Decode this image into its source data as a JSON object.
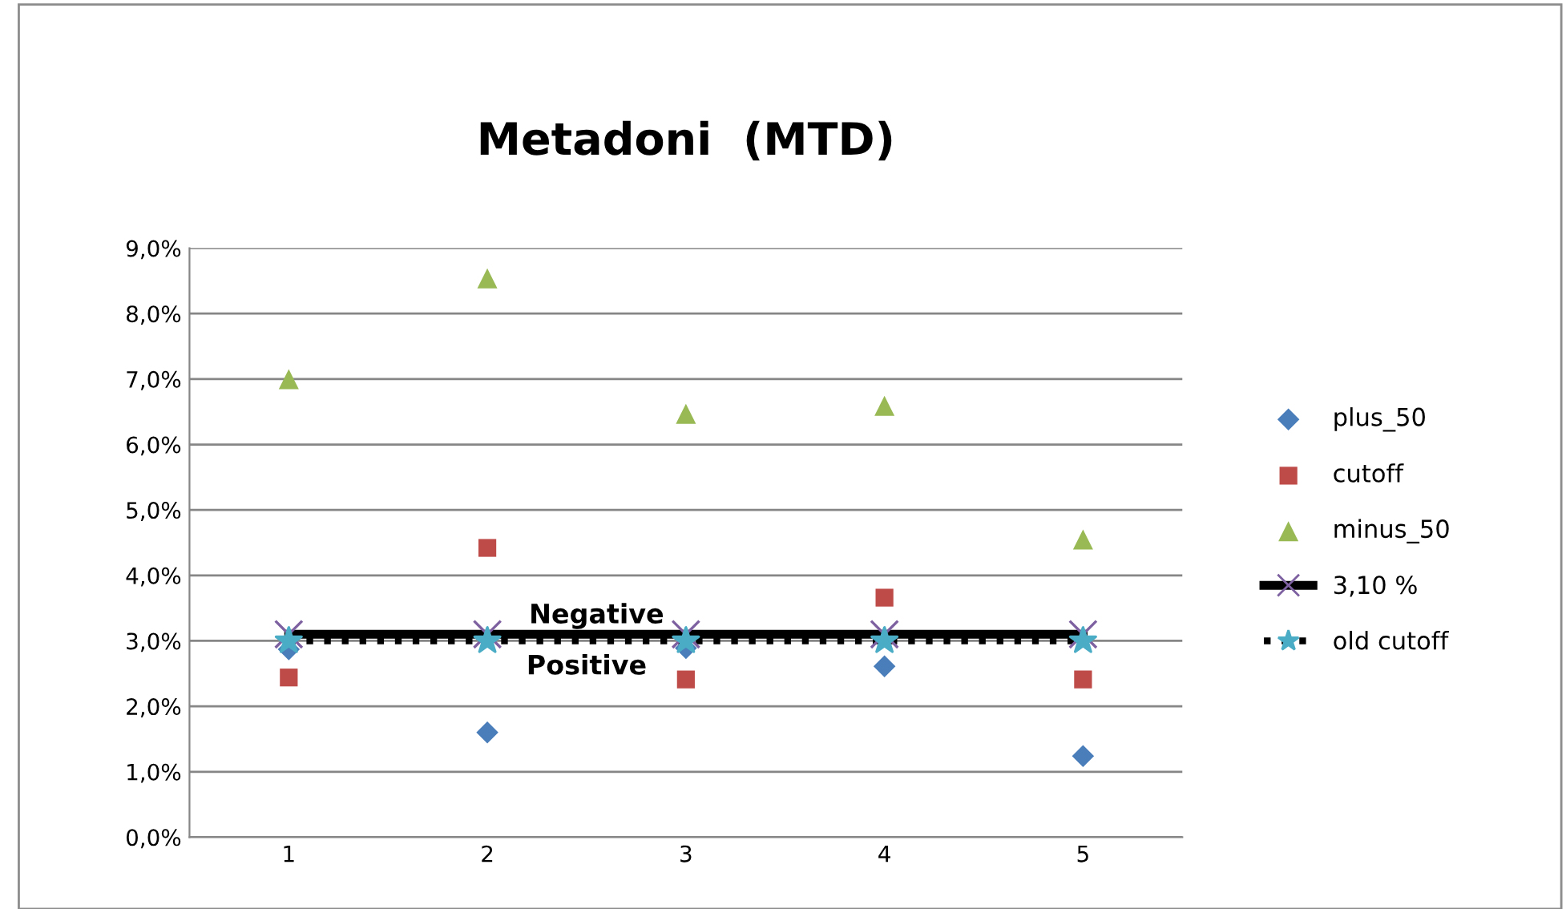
{
  "chart_data": {
    "type": "scatter",
    "title": "Metadoni  (MTD)",
    "categories": [
      "1",
      "2",
      "3",
      "4",
      "5"
    ],
    "series": [
      {
        "name": "plus_50",
        "marker": "diamond",
        "color": "#4a7ebb",
        "values": [
          2.87,
          1.6,
          2.89,
          2.61,
          1.24
        ]
      },
      {
        "name": "cutoff",
        "marker": "square",
        "color": "#be4b48",
        "values": [
          2.44,
          4.42,
          2.41,
          3.66,
          2.41
        ]
      },
      {
        "name": "minus_50",
        "marker": "triangle",
        "color": "#98b954",
        "values": [
          7.0,
          8.54,
          6.47,
          6.59,
          4.55
        ]
      },
      {
        "name": "3,10 %",
        "type": "line",
        "marker": "cross",
        "line_style": "solid",
        "color": "#000000",
        "colors": [
          "#7d60a0",
          "#7d60a0",
          "#7d60a0",
          "#7d60a0",
          "#7d60a0"
        ],
        "values": [
          3.1,
          3.1,
          3.1,
          3.1,
          3.1
        ]
      },
      {
        "name": "old cutoff",
        "type": "line",
        "marker": "star",
        "line_style": "dotted",
        "color": "#000000",
        "colors": [
          "#4bacc6",
          "#4bacc6",
          "#4bacc6",
          "#4bacc6",
          "#4bacc6"
        ],
        "values": [
          3.0,
          3.0,
          3.0,
          3.0,
          3.0
        ]
      }
    ],
    "annotations": [
      "Negative",
      "Positive"
    ],
    "ylim": [
      0,
      9
    ],
    "yticks": [
      {
        "value": 0,
        "label": "0,0%"
      },
      {
        "value": 1,
        "label": "1,0%"
      },
      {
        "value": 2,
        "label": "2,0%"
      },
      {
        "value": 3,
        "label": "3,0%"
      },
      {
        "value": 4,
        "label": "4,0%"
      },
      {
        "value": 5,
        "label": "5,0%"
      },
      {
        "value": 6,
        "label": "6,0%"
      },
      {
        "value": 7,
        "label": "7,0%"
      },
      {
        "value": 8,
        "label": "8,0%"
      },
      {
        "value": 9,
        "label": "9,0%"
      }
    ],
    "grid": "y",
    "legend": "right"
  }
}
